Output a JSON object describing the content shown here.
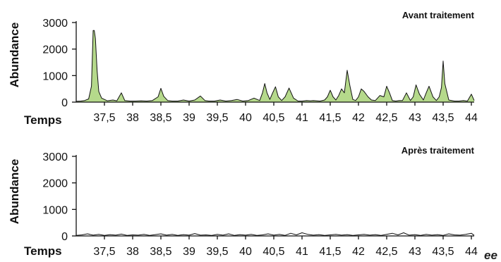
{
  "chart_data": [
    {
      "type": "area",
      "title": "Avant traitement",
      "xlabel": "Temps",
      "ylabel": "Abundance",
      "xlim": [
        37.0,
        44.05
      ],
      "ylim": [
        0,
        3000
      ],
      "yticks": [
        "0",
        "1000",
        "2000",
        "3000"
      ],
      "xticks": [
        {
          "value": 37.5,
          "label": "37,5"
        },
        {
          "value": 38,
          "label": "38"
        },
        {
          "value": 38.5,
          "label": "38,5"
        },
        {
          "value": 39,
          "label": "39"
        },
        {
          "value": 39.5,
          "label": "39,5"
        },
        {
          "value": 40,
          "label": "40"
        },
        {
          "value": 40.5,
          "label": "40,5"
        },
        {
          "value": 41,
          "label": "41"
        },
        {
          "value": 41.5,
          "label": "41,5"
        },
        {
          "value": 42,
          "label": "42"
        },
        {
          "value": 42.5,
          "label": "42,5"
        },
        {
          "value": 43,
          "label": "43"
        },
        {
          "value": 43.5,
          "label": "43,5"
        },
        {
          "value": 44,
          "label": "44"
        }
      ],
      "fill_color": "#b5d98b",
      "line_color": "#111111",
      "x": [
        37.0,
        37.08,
        37.15,
        37.22,
        37.27,
        37.3,
        37.32,
        37.34,
        37.37,
        37.4,
        37.45,
        37.55,
        37.65,
        37.72,
        37.8,
        37.86,
        37.95,
        38.05,
        38.15,
        38.25,
        38.35,
        38.45,
        38.5,
        38.55,
        38.62,
        38.7,
        38.8,
        38.9,
        39.0,
        39.1,
        39.2,
        39.28,
        39.35,
        39.45,
        39.55,
        39.65,
        39.75,
        39.85,
        39.95,
        40.05,
        40.15,
        40.25,
        40.3,
        40.34,
        40.38,
        40.43,
        40.48,
        40.53,
        40.58,
        40.64,
        40.7,
        40.77,
        40.85,
        40.93,
        41.0,
        41.08,
        41.15,
        41.2,
        41.26,
        41.32,
        41.4,
        41.45,
        41.5,
        41.55,
        41.6,
        41.65,
        41.7,
        41.75,
        41.8,
        41.85,
        41.9,
        41.95,
        42.0,
        42.05,
        42.1,
        42.17,
        42.23,
        42.3,
        42.38,
        42.45,
        42.5,
        42.55,
        42.6,
        42.66,
        42.72,
        42.78,
        42.85,
        42.92,
        42.97,
        43.02,
        43.08,
        43.15,
        43.2,
        43.25,
        43.32,
        43.38,
        43.43,
        43.47,
        43.5,
        43.53,
        43.6,
        43.7,
        43.78,
        43.86,
        43.93,
        44.0,
        44.05
      ],
      "y": [
        30,
        40,
        60,
        120,
        600,
        2700,
        2700,
        2400,
        1200,
        400,
        150,
        50,
        80,
        50,
        350,
        60,
        40,
        40,
        50,
        40,
        60,
        200,
        520,
        220,
        60,
        40,
        40,
        80,
        40,
        80,
        230,
        60,
        40,
        40,
        80,
        40,
        60,
        100,
        40,
        60,
        150,
        60,
        350,
        700,
        350,
        100,
        350,
        580,
        200,
        60,
        200,
        530,
        150,
        40,
        40,
        60,
        50,
        60,
        50,
        40,
        80,
        200,
        450,
        200,
        80,
        250,
        500,
        350,
        1200,
        600,
        100,
        60,
        200,
        500,
        400,
        200,
        80,
        60,
        250,
        200,
        600,
        350,
        60,
        40,
        60,
        60,
        350,
        60,
        200,
        650,
        300,
        80,
        350,
        600,
        200,
        60,
        200,
        550,
        1550,
        700,
        80,
        40,
        40,
        60,
        40,
        300,
        60
      ]
    },
    {
      "type": "line",
      "title": "Après traitement",
      "xlabel": "Temps",
      "ylabel": "Abundance",
      "xlim": [
        37.0,
        44.05
      ],
      "ylim": [
        0,
        3000
      ],
      "yticks": [
        "0",
        "1000",
        "2000",
        "3000"
      ],
      "xticks": [
        {
          "value": 37.5,
          "label": "37,5"
        },
        {
          "value": 38,
          "label": "38"
        },
        {
          "value": 38.5,
          "label": "38,5"
        },
        {
          "value": 39,
          "label": "39"
        },
        {
          "value": 39.5,
          "label": "39,5"
        },
        {
          "value": 40,
          "label": "40"
        },
        {
          "value": 40.5,
          "label": "40,5"
        },
        {
          "value": 41,
          "label": "41"
        },
        {
          "value": 41.5,
          "label": "41,5"
        },
        {
          "value": 42,
          "label": "42"
        },
        {
          "value": 42.5,
          "label": "42,5"
        },
        {
          "value": 43,
          "label": "43"
        },
        {
          "value": 43.5,
          "label": "43,5"
        },
        {
          "value": 44,
          "label": "44"
        }
      ],
      "line_color": "#111111",
      "x": [
        37.0,
        37.1,
        37.2,
        37.3,
        37.4,
        37.5,
        37.6,
        37.7,
        37.8,
        37.9,
        38.0,
        38.1,
        38.2,
        38.3,
        38.4,
        38.5,
        38.6,
        38.7,
        38.8,
        38.9,
        39.0,
        39.1,
        39.2,
        39.3,
        39.4,
        39.5,
        39.6,
        39.7,
        39.8,
        39.9,
        40.0,
        40.1,
        40.2,
        40.3,
        40.4,
        40.5,
        40.6,
        40.7,
        40.8,
        40.9,
        41.0,
        41.1,
        41.2,
        41.3,
        41.4,
        41.5,
        41.6,
        41.7,
        41.8,
        41.9,
        42.0,
        42.1,
        42.2,
        42.3,
        42.4,
        42.5,
        42.6,
        42.7,
        42.8,
        42.9,
        43.0,
        43.1,
        43.2,
        43.3,
        43.4,
        43.5,
        43.6,
        43.7,
        43.8,
        43.9,
        44.0,
        44.05
      ],
      "y": [
        20,
        40,
        80,
        30,
        60,
        20,
        50,
        30,
        70,
        20,
        40,
        30,
        60,
        20,
        50,
        80,
        30,
        60,
        20,
        50,
        30,
        90,
        30,
        40,
        20,
        60,
        30,
        80,
        20,
        50,
        30,
        60,
        20,
        40,
        80,
        30,
        60,
        20,
        100,
        40,
        120,
        60,
        30,
        50,
        20,
        40,
        60,
        30,
        50,
        20,
        40,
        60,
        30,
        50,
        20,
        60,
        100,
        40,
        120,
        30,
        50,
        20,
        60,
        30,
        50,
        20,
        80,
        40,
        30,
        60,
        100,
        20
      ]
    }
  ],
  "extra": {
    "corner_mark": "ee"
  }
}
